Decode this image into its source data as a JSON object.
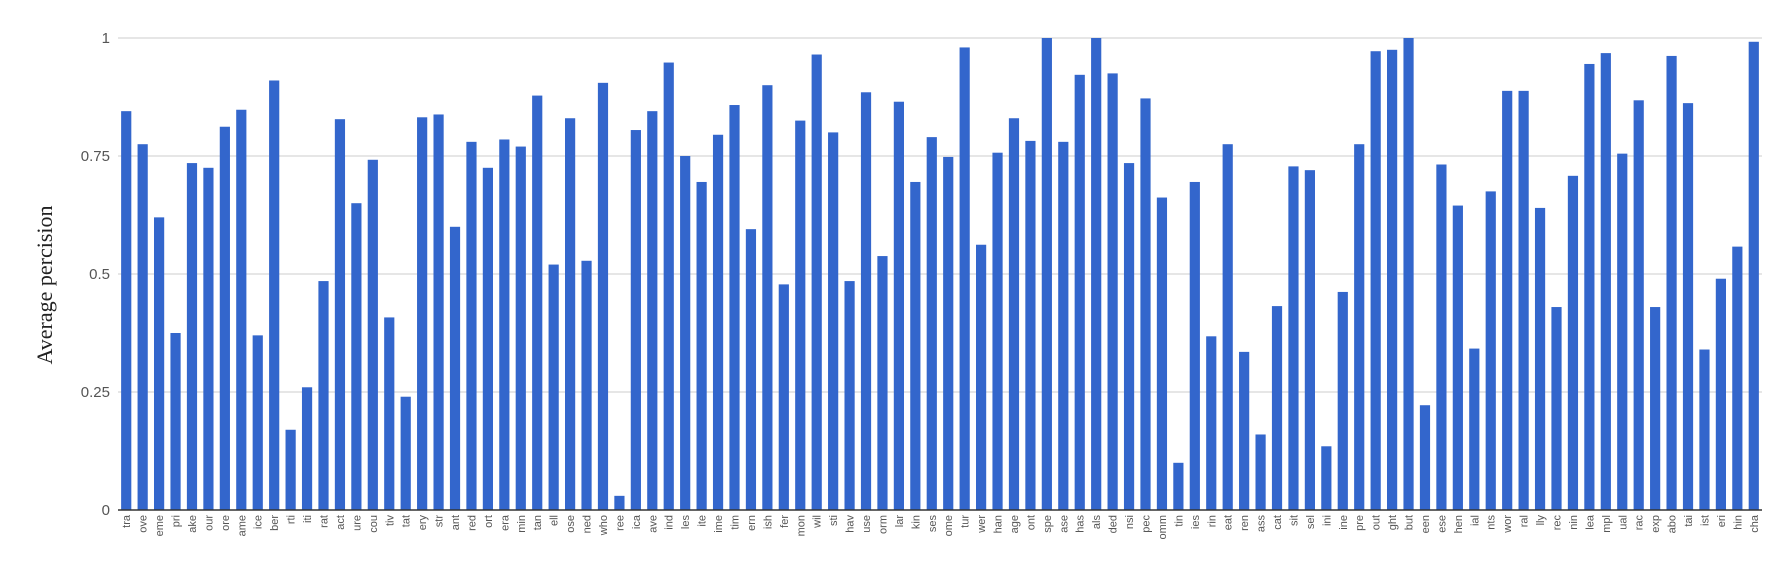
{
  "chart_data": {
    "type": "bar",
    "ylabel": "Average percision",
    "xlabel": "",
    "ylim": [
      0,
      1
    ],
    "yticks": [
      0,
      0.25,
      0.5,
      0.75,
      1
    ],
    "ytick_labels": [
      "0",
      "0.25",
      "0.5",
      "0.75",
      "1"
    ],
    "grid": "horizontal",
    "bar_color": "#3366cc",
    "categories": [
      "tra",
      "ove",
      "eme",
      "pri",
      "ake",
      "our",
      "ore",
      "ame",
      "ice",
      "ber",
      "rti",
      "iti",
      "rat",
      "act",
      "ure",
      "cou",
      "tiv",
      "tat",
      "ery",
      "str",
      "ant",
      "red",
      "ort",
      "era",
      "min",
      "tan",
      "ell",
      "ose",
      "ned",
      "who",
      "ree",
      "ica",
      "ave",
      "ind",
      "les",
      "ite",
      "ime",
      "tim",
      "ern",
      "ish",
      "fer",
      "mon",
      "wil",
      "sti",
      "hav",
      "use",
      "orm",
      "lar",
      "kin",
      "ses",
      "ome",
      "tur",
      "wer",
      "han",
      "age",
      "ont",
      "spe",
      "ase",
      "has",
      "als",
      "ded",
      "nsi",
      "pec",
      "omm",
      "tin",
      "ies",
      "rin",
      "eat",
      "ren",
      "ass",
      "cat",
      "sit",
      "sel",
      "ini",
      "ine",
      "pre",
      "out",
      "ght",
      "but",
      "een",
      "ese",
      "hen",
      "ial",
      "nts",
      "wor",
      "ral",
      "lly",
      "rec",
      "nin",
      "lea",
      "mpl",
      "ual",
      "rac",
      "exp",
      "abo",
      "tai",
      "ist",
      "eri",
      "hin",
      "cha"
    ],
    "values": [
      0.845,
      0.775,
      0.62,
      0.375,
      0.735,
      0.725,
      0.812,
      0.848,
      0.37,
      0.91,
      0.17,
      0.26,
      0.485,
      0.828,
      0.65,
      0.742,
      0.408,
      0.24,
      0.832,
      0.838,
      0.6,
      0.78,
      0.725,
      0.785,
      0.77,
      0.878,
      0.52,
      0.83,
      0.528,
      0.905,
      0.03,
      0.805,
      0.845,
      0.948,
      0.75,
      0.695,
      0.795,
      0.858,
      0.595,
      0.9,
      0.478,
      0.825,
      0.965,
      0.8,
      0.485,
      0.885,
      0.538,
      0.865,
      0.695,
      0.79,
      0.748,
      0.98,
      0.562,
      0.757,
      0.83,
      0.782,
      1.0,
      0.78,
      0.922,
      1.0,
      0.925,
      0.735,
      0.872,
      0.662,
      0.1,
      0.695,
      0.368,
      0.775,
      0.335,
      0.16,
      0.432,
      0.728,
      0.72,
      0.135,
      0.462,
      0.775,
      0.972,
      0.975,
      1.0,
      0.222,
      0.732,
      0.645,
      0.342,
      0.675,
      0.888,
      0.888,
      0.64,
      0.43,
      0.708,
      0.945,
      0.968,
      0.755,
      0.868,
      0.43,
      0.962,
      0.862,
      0.34,
      0.49,
      0.558,
      0.992
    ]
  }
}
